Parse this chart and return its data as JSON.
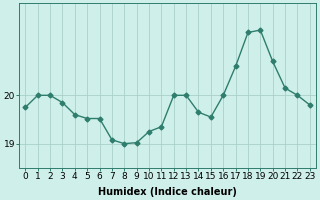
{
  "x": [
    0,
    1,
    2,
    3,
    4,
    5,
    6,
    7,
    8,
    9,
    10,
    11,
    12,
    13,
    14,
    15,
    16,
    17,
    18,
    19,
    20,
    21,
    22,
    23
  ],
  "y": [
    19.75,
    20.0,
    20.0,
    19.85,
    19.6,
    19.52,
    19.52,
    19.08,
    19.0,
    19.02,
    19.25,
    19.35,
    20.0,
    20.0,
    19.65,
    19.55,
    20.0,
    20.6,
    21.3,
    21.35,
    20.7,
    20.15,
    20.0,
    19.8
  ],
  "line_color": "#2e7d6d",
  "marker": "D",
  "markersize": 2.5,
  "linewidth": 1.0,
  "bg_color": "#cff0ea",
  "grid_color": "#aacfc9",
  "xlabel": "Humidex (Indice chaleur)",
  "xlabel_fontsize": 7,
  "yticks": [
    19,
    20
  ],
  "ylim": [
    18.5,
    21.9
  ],
  "xlim": [
    -0.5,
    23.5
  ],
  "xtick_labels": [
    "0",
    "1",
    "2",
    "3",
    "4",
    "5",
    "6",
    "7",
    "8",
    "9",
    "10",
    "11",
    "12",
    "13",
    "14",
    "15",
    "16",
    "17",
    "18",
    "19",
    "20",
    "21",
    "22",
    "23"
  ],
  "tick_fontsize": 6.5,
  "figsize": [
    3.2,
    2.0
  ],
  "dpi": 100
}
